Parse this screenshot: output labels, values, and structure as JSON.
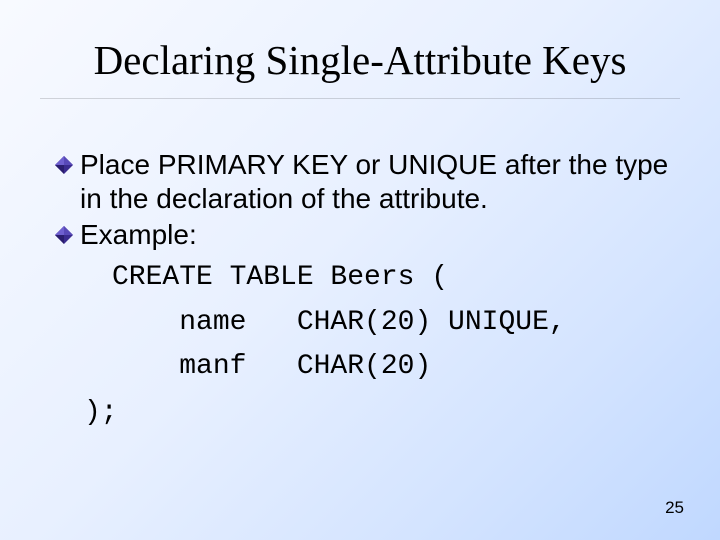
{
  "slide": {
    "title": "Declaring Single-Attribute Keys",
    "bullets": [
      {
        "text": "Place PRIMARY KEY or UNIQUE after the type in the declaration of the attribute."
      },
      {
        "text": "Example:"
      }
    ],
    "code": "CREATE TABLE Beers (\n    name   CHAR(20) UNIQUE,\n    manf   CHAR(20)\n);",
    "page_number": "25",
    "styles": {
      "bullet_color": "#3a2b8f",
      "title_fontsize": 41,
      "body_fontsize": 28,
      "code_fontsize": 28,
      "background_gradient": [
        "#f8faff",
        "#e8f0ff",
        "#d4e4ff",
        "#c0d8ff"
      ],
      "bullet_shape": "diamond-3d"
    }
  }
}
